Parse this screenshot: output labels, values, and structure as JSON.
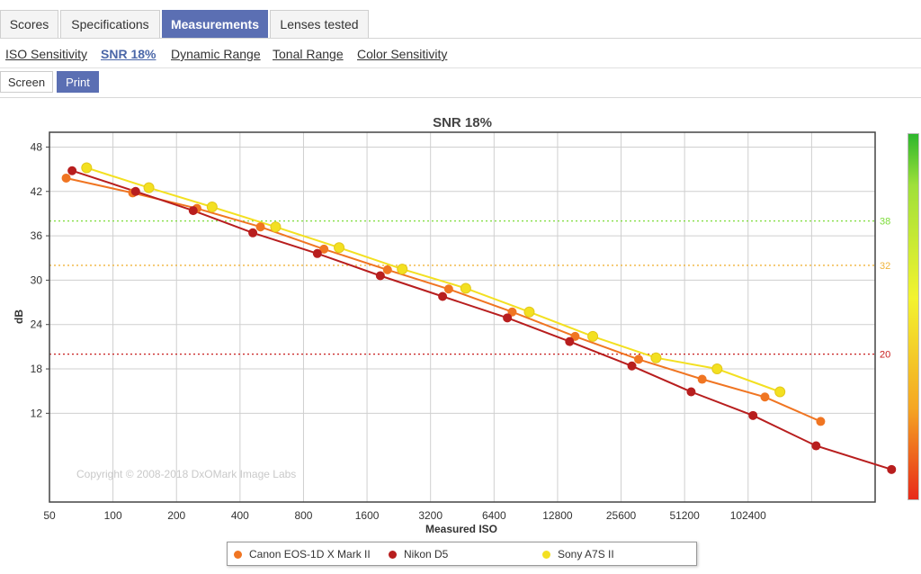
{
  "tabs": [
    {
      "label": "Scores",
      "active": false
    },
    {
      "label": "Specifications",
      "active": false
    },
    {
      "label": "Measurements",
      "active": true
    },
    {
      "label": "Lenses tested",
      "active": false
    }
  ],
  "subnav": [
    {
      "label": "ISO Sensitivity",
      "active": false
    },
    {
      "label": "SNR 18%",
      "active": true
    },
    {
      "label": "Dynamic Range",
      "active": false
    },
    {
      "label": "Tonal Range",
      "active": false
    },
    {
      "label": "Color Sensitivity",
      "active": false
    }
  ],
  "mode": {
    "screen_label": "Screen",
    "print_label": "Print",
    "selected": "Print"
  },
  "copyright": "Copyright © 2008-2018 DxOMark Image Labs",
  "chart_data": {
    "type": "line",
    "title": "SNR 18%",
    "xlabel": "Measured ISO",
    "ylabel": "dB",
    "x_scale": "log2",
    "xlim": [
      50,
      409600
    ],
    "ylim": [
      0,
      50
    ],
    "x_ticks": [
      50,
      100,
      200,
      400,
      800,
      1600,
      3200,
      6400,
      12800,
      25600,
      51200,
      102400
    ],
    "y_ticks": [
      12,
      18,
      24,
      30,
      36,
      42,
      48
    ],
    "grid": true,
    "legend_position": "bottom",
    "reference_lines": [
      {
        "value": 38,
        "label": "38",
        "color": "#7ddc3a"
      },
      {
        "value": 32,
        "label": "32",
        "color": "#f0b43a"
      },
      {
        "value": 20,
        "label": "20",
        "color": "#c81e1e"
      }
    ],
    "color_scale": [
      "#2db72d",
      "#f3f32f",
      "#e82a1a"
    ],
    "series": [
      {
        "name": "Canon EOS-1D X Mark II",
        "color": "#f07522",
        "marker": "diamond",
        "points": [
          [
            60,
            43.8
          ],
          [
            124,
            41.8
          ],
          [
            250,
            39.7
          ],
          [
            500,
            37.2
          ],
          [
            1000,
            34.2
          ],
          [
            2000,
            31.4
          ],
          [
            3900,
            28.8
          ],
          [
            7800,
            25.7
          ],
          [
            15500,
            22.4
          ],
          [
            31000,
            19.3
          ],
          [
            62000,
            16.6
          ],
          [
            123000,
            14.2
          ],
          [
            226000,
            10.9
          ]
        ]
      },
      {
        "name": "Nikon D5",
        "color": "#b81e1e",
        "marker": "diamond",
        "points": [
          [
            64,
            44.8
          ],
          [
            128,
            42.0
          ],
          [
            240,
            39.4
          ],
          [
            460,
            36.4
          ],
          [
            930,
            33.6
          ],
          [
            1850,
            30.6
          ],
          [
            3650,
            27.8
          ],
          [
            7400,
            24.9
          ],
          [
            14600,
            21.7
          ],
          [
            28800,
            18.4
          ],
          [
            55000,
            14.9
          ],
          [
            108000,
            11.7
          ],
          [
            215000,
            7.6
          ],
          [
            490000,
            4.4
          ]
        ]
      },
      {
        "name": "Sony A7S II",
        "color": "#f3e021",
        "marker": "circle",
        "points": [
          [
            75,
            45.2
          ],
          [
            148,
            42.5
          ],
          [
            295,
            39.9
          ],
          [
            590,
            37.2
          ],
          [
            1180,
            34.4
          ],
          [
            2350,
            31.5
          ],
          [
            4700,
            28.9
          ],
          [
            9400,
            25.7
          ],
          [
            18800,
            22.4
          ],
          [
            37500,
            19.5
          ],
          [
            73000,
            18.0
          ],
          [
            145000,
            14.9
          ]
        ]
      }
    ]
  }
}
